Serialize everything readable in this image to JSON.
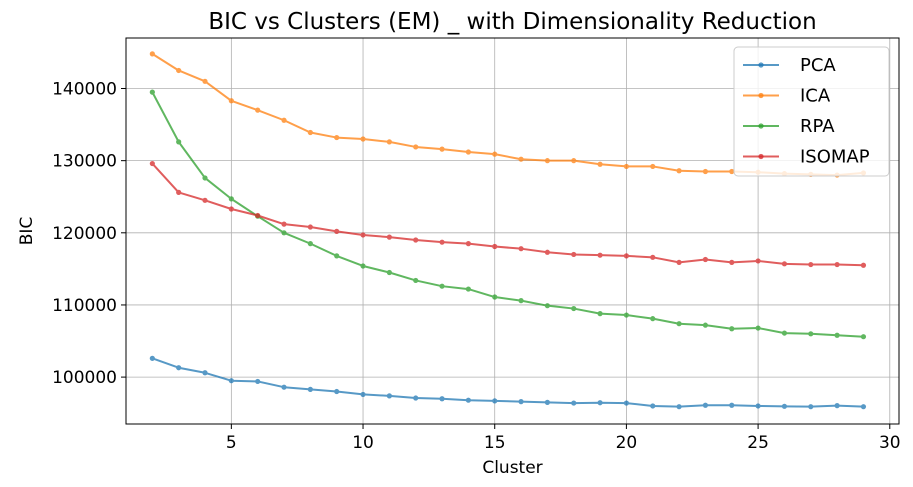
{
  "chart_data": {
    "type": "line",
    "title": "BIC vs Clusters (EM) _ with Dimensionality Reduction",
    "xlabel": "Cluster",
    "ylabel": "BIC",
    "xlim": [
      1.0,
      30.35
    ],
    "ylim": [
      93500,
      147000
    ],
    "xticks": [
      5,
      10,
      15,
      20,
      25,
      30
    ],
    "yticks": [
      100000,
      110000,
      120000,
      130000,
      140000
    ],
    "grid": true,
    "legend_position": "top-right",
    "x": [
      2,
      3,
      4,
      5,
      6,
      7,
      8,
      9,
      10,
      11,
      12,
      13,
      14,
      15,
      16,
      17,
      18,
      19,
      20,
      21,
      22,
      23,
      24,
      25,
      26,
      27,
      28,
      29
    ],
    "series": [
      {
        "name": "PCA",
        "color": "#1f77b4",
        "values": [
          102600,
          101300,
          100600,
          99500,
          99400,
          98600,
          98300,
          98000,
          97600,
          97400,
          97100,
          97000,
          96800,
          96700,
          96600,
          96500,
          96400,
          96450,
          96400,
          96000,
          95900,
          96100,
          96100,
          96000,
          95950,
          95900,
          96050,
          95900
        ]
      },
      {
        "name": "ICA",
        "color": "#ff7f0e",
        "values": [
          144800,
          142500,
          141000,
          138300,
          137000,
          135600,
          133900,
          133200,
          133000,
          132600,
          131900,
          131600,
          131200,
          130900,
          130200,
          130000,
          130000,
          129500,
          129200,
          129200,
          128600,
          128500,
          128500,
          128400,
          128200,
          128100,
          128000,
          128300
        ]
      },
      {
        "name": "RPA",
        "color": "#2ca02c",
        "values": [
          139500,
          132600,
          127600,
          124700,
          122300,
          120000,
          118500,
          116800,
          115400,
          114500,
          113400,
          112600,
          112200,
          111100,
          110600,
          109900,
          109500,
          108800,
          108600,
          108100,
          107400,
          107200,
          106700,
          106800,
          106100,
          106000,
          105800,
          105600
        ]
      },
      {
        "name": "ISOMAP",
        "color": "#d62728",
        "values": [
          129600,
          125600,
          124500,
          123300,
          122400,
          121200,
          120800,
          120200,
          119700,
          119400,
          119000,
          118700,
          118500,
          118100,
          117800,
          117300,
          117000,
          116900,
          116800,
          116600,
          115900,
          116300,
          115900,
          116100,
          115700,
          115600,
          115600,
          115500
        ]
      }
    ]
  }
}
